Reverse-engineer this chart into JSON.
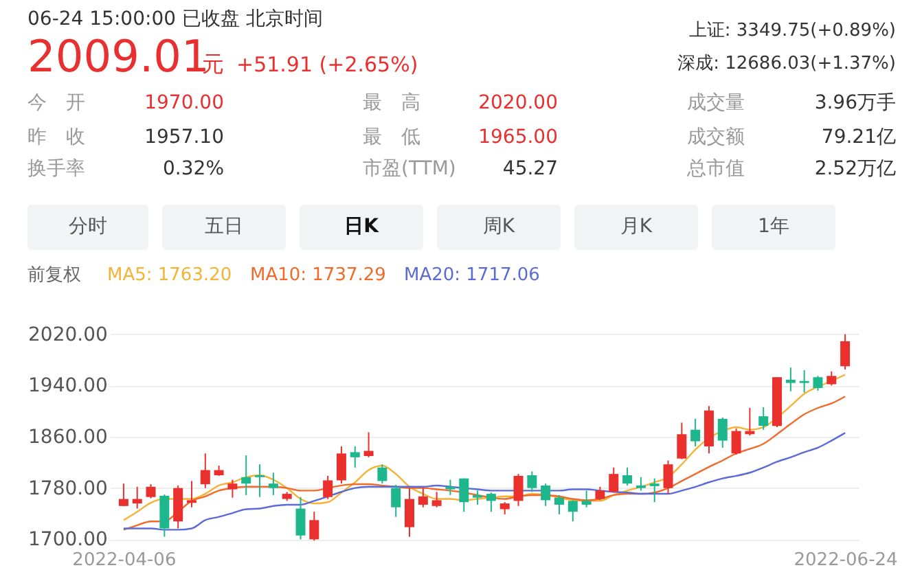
{
  "chart_data": {
    "type": "candlestick",
    "title": "06-24 15:00:00  已收盘  北京时间",
    "annotations": [
      "2009.01",
      "元",
      "+51.91 (+2.65%)",
      "上证: 3349.75(+0.89%)",
      "深成: 12686.03(+1.37%)",
      "今　开",
      "1970.00",
      "最　高",
      "2020.00",
      "成交量",
      "3.96万手",
      "昨　收",
      "1957.10",
      "最　低",
      "1965.00",
      "成交额",
      "79.21亿",
      "换手率",
      "0.32%",
      "市盈(TTM)",
      "45.27",
      "总市值",
      "2.52万亿",
      "分时",
      "五日",
      "日K",
      "周K",
      "月K",
      "1年",
      "前复权"
    ],
    "categories": [
      "2022-04-06",
      null,
      null,
      null,
      null,
      null,
      null,
      null,
      null,
      null,
      null,
      null,
      null,
      null,
      null,
      null,
      null,
      null,
      null,
      null,
      null,
      null,
      null,
      null,
      null,
      null,
      null,
      null,
      null,
      null,
      null,
      null,
      null,
      null,
      null,
      null,
      null,
      null,
      null,
      null,
      null,
      null,
      null,
      null,
      null,
      null,
      null,
      null,
      null,
      null,
      null,
      null,
      null,
      "2022-06-24"
    ],
    "ohlc": [
      [
        1752,
        1787,
        1752,
        1763
      ],
      [
        1756,
        1782,
        1748,
        1763
      ],
      [
        1766,
        1786,
        1764,
        1782
      ],
      [
        1768,
        1770,
        1704,
        1717
      ],
      [
        1728,
        1784,
        1717,
        1780
      ],
      [
        1757,
        1791,
        1750,
        1761
      ],
      [
        1786,
        1834,
        1780,
        1808
      ],
      [
        1800,
        1815,
        1799,
        1808
      ],
      [
        1778,
        1793,
        1765,
        1787
      ],
      [
        1797,
        1831,
        1769,
        1787
      ],
      [
        1800,
        1817,
        1766,
        1797
      ],
      [
        1787,
        1804,
        1769,
        1780
      ],
      [
        1763,
        1774,
        1760,
        1771
      ],
      [
        1748,
        1766,
        1700,
        1706
      ],
      [
        1700,
        1743,
        1698,
        1730
      ],
      [
        1766,
        1799,
        1763,
        1792
      ],
      [
        1792,
        1845,
        1787,
        1834
      ],
      [
        1836,
        1845,
        1812,
        1828
      ],
      [
        1830,
        1867,
        1828,
        1838
      ],
      [
        1812,
        1817,
        1787,
        1791
      ],
      [
        1780,
        1785,
        1735,
        1750
      ],
      [
        1719,
        1780,
        1704,
        1763
      ],
      [
        1754,
        1780,
        1750,
        1767
      ],
      [
        1752,
        1774,
        1750,
        1761
      ],
      [
        1782,
        1793,
        1769,
        1778
      ],
      [
        1795,
        1795,
        1743,
        1758
      ],
      [
        1769,
        1776,
        1754,
        1765
      ],
      [
        1771,
        1773,
        1743,
        1760
      ],
      [
        1747,
        1758,
        1739,
        1756
      ],
      [
        1760,
        1802,
        1752,
        1799
      ],
      [
        1800,
        1806,
        1774,
        1780
      ],
      [
        1784,
        1787,
        1752,
        1761
      ],
      [
        1765,
        1769,
        1739,
        1754
      ],
      [
        1760,
        1761,
        1728,
        1743
      ],
      [
        1760,
        1776,
        1750,
        1754
      ],
      [
        1763,
        1782,
        1761,
        1776
      ],
      [
        1774,
        1812,
        1773,
        1802
      ],
      [
        1800,
        1812,
        1784,
        1787
      ],
      [
        1784,
        1797,
        1776,
        1780
      ],
      [
        1787,
        1795,
        1758,
        1783
      ],
      [
        1780,
        1823,
        1771,
        1817
      ],
      [
        1826,
        1882,
        1825,
        1864
      ],
      [
        1871,
        1888,
        1845,
        1853
      ],
      [
        1845,
        1908,
        1834,
        1901
      ],
      [
        1888,
        1890,
        1843,
        1854
      ],
      [
        1834,
        1873,
        1832,
        1869
      ],
      [
        1864,
        1905,
        1862,
        1869
      ],
      [
        1892,
        1906,
        1871,
        1877
      ],
      [
        1877,
        1953,
        1875,
        1953
      ],
      [
        1949,
        1968,
        1931,
        1944
      ],
      [
        1947,
        1964,
        1929,
        1944
      ],
      [
        1953,
        1955,
        1932,
        1936
      ],
      [
        1942,
        1962,
        1940,
        1955
      ],
      [
        1970,
        2020,
        1965,
        2009.01
      ]
    ],
    "colors": [
      "#e9302d",
      "#e9302d",
      "#e9302d",
      "#1eb68d",
      "#e9302d",
      "#e9302d",
      "#e9302d",
      "#e9302d",
      "#e9302d",
      "#1eb68d",
      "#1eb68d",
      "#1eb68d",
      "#e9302d",
      "#1eb68d",
      "#e9302d",
      "#e9302d",
      "#e9302d",
      "#1eb68d",
      "#e9302d",
      "#1eb68d",
      "#1eb68d",
      "#e9302d",
      "#e9302d",
      "#e9302d",
      "#1eb68d",
      "#1eb68d",
      "#1eb68d",
      "#1eb68d",
      "#e9302d",
      "#e9302d",
      "#1eb68d",
      "#1eb68d",
      "#1eb68d",
      "#1eb68d",
      "#1eb68d",
      "#e9302d",
      "#e9302d",
      "#1eb68d",
      "#1eb68d",
      "#1eb68d",
      "#e9302d",
      "#e9302d",
      "#1eb68d",
      "#e9302d",
      "#1eb68d",
      "#e9302d",
      "#e9302d",
      "#1eb68d",
      "#e9302d",
      "#1eb68d",
      "#1eb68d",
      "#1eb68d",
      "#e9302d",
      "#e9302d"
    ],
    "series": [
      {
        "name": "MA5: 1763.20",
        "type": "line",
        "color": "#f5b335",
        "values": [
          1730,
          1743,
          1757,
          1763,
          1763,
          1763,
          1771,
          1784,
          1789,
          1797,
          1800,
          1793,
          1780,
          1763,
          1756,
          1758,
          1773,
          1789,
          1808,
          1815,
          1802,
          1782,
          1771,
          1763,
          1763,
          1761,
          1763,
          1765,
          1767,
          1767,
          1771,
          1769,
          1765,
          1761,
          1760,
          1760,
          1769,
          1776,
          1782,
          1789,
          1797,
          1817,
          1840,
          1858,
          1869,
          1875,
          1871,
          1875,
          1890,
          1908,
          1927,
          1938,
          1947,
          1957
        ]
      },
      {
        "name": "MA10: 1737.29",
        "type": "line",
        "color": "#f06a2a",
        "values": [
          1715,
          1722,
          1728,
          1728,
          1743,
          1760,
          1767,
          1776,
          1780,
          1782,
          1782,
          1782,
          1780,
          1776,
          1776,
          1780,
          1784,
          1786,
          1786,
          1784,
          1782,
          1780,
          1780,
          1778,
          1776,
          1773,
          1769,
          1765,
          1763,
          1767,
          1769,
          1769,
          1767,
          1763,
          1761,
          1763,
          1769,
          1771,
          1771,
          1773,
          1780,
          1791,
          1802,
          1813,
          1823,
          1834,
          1841,
          1849,
          1864,
          1880,
          1895,
          1905,
          1912,
          1923
        ]
      },
      {
        "name": "MA20: 1717.06",
        "type": "line",
        "color": "#5b6bd6",
        "values": [
          1717,
          1717,
          1717,
          1715,
          1715,
          1717,
          1730,
          1735,
          1741,
          1747,
          1748,
          1752,
          1754,
          1754,
          1760,
          1767,
          1774,
          1780,
          1782,
          1782,
          1782,
          1782,
          1782,
          1784,
          1782,
          1780,
          1778,
          1776,
          1776,
          1776,
          1776,
          1776,
          1776,
          1778,
          1778,
          1776,
          1774,
          1773,
          1771,
          1771,
          1771,
          1776,
          1782,
          1789,
          1795,
          1799,
          1804,
          1812,
          1821,
          1828,
          1836,
          1843,
          1854,
          1866
        ]
      }
    ],
    "ylim": [
      1695,
      2025
    ],
    "yticks": [
      {
        "value": 1700,
        "label": "1700.00"
      },
      {
        "value": 1780,
        "label": "1780.00"
      },
      {
        "value": 1860,
        "label": "1860.00"
      },
      {
        "value": 1940,
        "label": "1940.00"
      },
      {
        "value": 2020,
        "label": "2020.00"
      }
    ],
    "grid": "y",
    "legend": "top left"
  }
}
